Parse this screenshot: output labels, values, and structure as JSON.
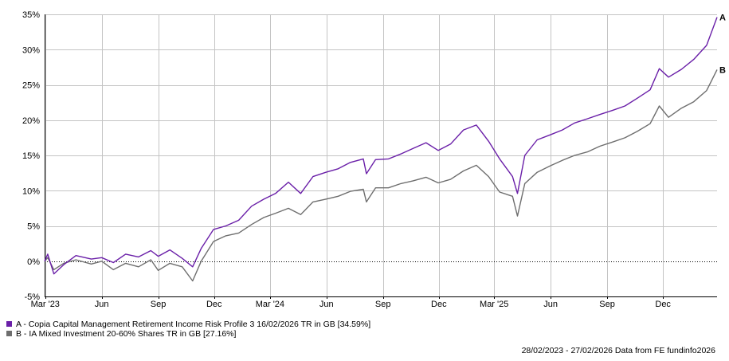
{
  "chart_data": {
    "type": "line",
    "title": "",
    "xlabel": "",
    "ylabel": "",
    "y_ticks": [
      "35%",
      "30%",
      "25%",
      "20%",
      "15%",
      "10%",
      "5%",
      "0%",
      "-5%"
    ],
    "y_tick_values": [
      35,
      30,
      25,
      20,
      15,
      10,
      5,
      0,
      -5
    ],
    "ylim": [
      -5,
      35
    ],
    "x_ticks": [
      "Mar '23",
      "Jun",
      "Sep",
      "Dec",
      "Mar '24",
      "Jun",
      "Sep",
      "Dec",
      "Mar '25",
      "Jun",
      "Sep",
      "Dec"
    ],
    "x_tick_dates": [
      "2023-03-01",
      "2023-06-01",
      "2023-09-01",
      "2023-12-01",
      "2024-03-01",
      "2024-06-01",
      "2024-09-01",
      "2024-12-01",
      "2025-03-01",
      "2025-06-01",
      "2025-09-01",
      "2025-12-01"
    ],
    "xlim": [
      "2023-02-28",
      "2026-02-27"
    ],
    "grid": true,
    "zero_line": "dotted",
    "series": [
      {
        "name": "A",
        "color": "#6a1fa8",
        "end_label": "A",
        "x": [
          "2023-02-28",
          "2023-03-05",
          "2023-03-15",
          "2023-03-31",
          "2023-04-20",
          "2023-05-15",
          "2023-06-01",
          "2023-06-20",
          "2023-07-10",
          "2023-07-31",
          "2023-08-20",
          "2023-09-01",
          "2023-09-20",
          "2023-10-10",
          "2023-10-27",
          "2023-11-10",
          "2023-11-30",
          "2023-12-20",
          "2024-01-10",
          "2024-01-31",
          "2024-02-20",
          "2024-03-10",
          "2024-03-31",
          "2024-04-20",
          "2024-05-10",
          "2024-05-31",
          "2024-06-20",
          "2024-07-10",
          "2024-07-31",
          "2024-08-05",
          "2024-08-20",
          "2024-09-10",
          "2024-09-30",
          "2024-10-20",
          "2024-11-10",
          "2024-11-30",
          "2024-12-20",
          "2025-01-10",
          "2025-01-31",
          "2025-02-20",
          "2025-03-10",
          "2025-03-31",
          "2025-04-08",
          "2025-04-20",
          "2025-05-10",
          "2025-05-31",
          "2025-06-20",
          "2025-07-10",
          "2025-07-31",
          "2025-08-20",
          "2025-09-10",
          "2025-09-30",
          "2025-10-20",
          "2025-11-10",
          "2025-11-25",
          "2025-12-10",
          "2025-12-31",
          "2026-01-20",
          "2026-02-10",
          "2026-02-27"
        ],
        "values": [
          0.0,
          1.0,
          -1.8,
          -0.5,
          0.8,
          0.3,
          0.5,
          -0.2,
          1.0,
          0.6,
          1.5,
          0.7,
          1.6,
          0.4,
          -0.8,
          1.8,
          4.5,
          5.0,
          5.8,
          7.8,
          8.8,
          9.6,
          11.2,
          9.6,
          12.0,
          12.6,
          13.1,
          14.0,
          14.5,
          12.4,
          14.4,
          14.5,
          15.2,
          16.0,
          16.8,
          15.7,
          16.6,
          18.6,
          19.3,
          17.0,
          14.5,
          12.0,
          9.6,
          15.0,
          17.2,
          17.9,
          18.6,
          19.6,
          20.2,
          20.8,
          21.4,
          22.0,
          23.1,
          24.3,
          27.3,
          26.1,
          27.2,
          28.6,
          30.6,
          34.59
        ]
      },
      {
        "name": "B",
        "color": "#6e6e6e",
        "end_label": "B",
        "x": [
          "2023-02-28",
          "2023-03-05",
          "2023-03-15",
          "2023-03-31",
          "2023-04-20",
          "2023-05-15",
          "2023-06-01",
          "2023-06-20",
          "2023-07-10",
          "2023-07-31",
          "2023-08-20",
          "2023-09-01",
          "2023-09-20",
          "2023-10-10",
          "2023-10-27",
          "2023-11-10",
          "2023-11-30",
          "2023-12-20",
          "2024-01-10",
          "2024-01-31",
          "2024-02-20",
          "2024-03-10",
          "2024-03-31",
          "2024-04-20",
          "2024-05-10",
          "2024-05-31",
          "2024-06-20",
          "2024-07-10",
          "2024-07-31",
          "2024-08-05",
          "2024-08-20",
          "2024-09-10",
          "2024-09-30",
          "2024-10-20",
          "2024-11-10",
          "2024-11-30",
          "2024-12-20",
          "2025-01-10",
          "2025-01-31",
          "2025-02-20",
          "2025-03-10",
          "2025-03-31",
          "2025-04-08",
          "2025-04-20",
          "2025-05-10",
          "2025-05-31",
          "2025-06-20",
          "2025-07-10",
          "2025-07-31",
          "2025-08-20",
          "2025-09-10",
          "2025-09-30",
          "2025-10-20",
          "2025-11-10",
          "2025-11-25",
          "2025-12-10",
          "2025-12-31",
          "2026-01-20",
          "2026-02-10",
          "2026-02-27"
        ],
        "values": [
          0.0,
          0.5,
          -1.2,
          -0.3,
          0.2,
          -0.4,
          0.0,
          -1.2,
          -0.3,
          -0.8,
          0.2,
          -1.3,
          -0.3,
          -0.8,
          -2.8,
          0.0,
          2.8,
          3.6,
          4.0,
          5.2,
          6.2,
          6.8,
          7.5,
          6.6,
          8.4,
          8.8,
          9.2,
          9.9,
          10.2,
          8.4,
          10.4,
          10.4,
          11.0,
          11.4,
          11.9,
          11.1,
          11.6,
          12.8,
          13.6,
          12.0,
          9.8,
          9.2,
          6.4,
          11.0,
          12.6,
          13.5,
          14.3,
          15.0,
          15.5,
          16.3,
          16.9,
          17.5,
          18.4,
          19.5,
          22.0,
          20.4,
          21.7,
          22.6,
          24.2,
          27.16
        ]
      }
    ],
    "legend": [
      {
        "swatch_color": "#6a1fa8",
        "text": "A - Copia Capital Management Retirement Income Risk Profile 3 16/02/2026 TR in GB [34.59%]"
      },
      {
        "swatch_color": "#6e6e6e",
        "text": "B - IA Mixed Investment 20-60% Shares TR in GB [27.16%]"
      }
    ],
    "legend_position": "bottom-left"
  },
  "footer": "28/02/2023 - 27/02/2026 Data from FE fundinfo2026"
}
